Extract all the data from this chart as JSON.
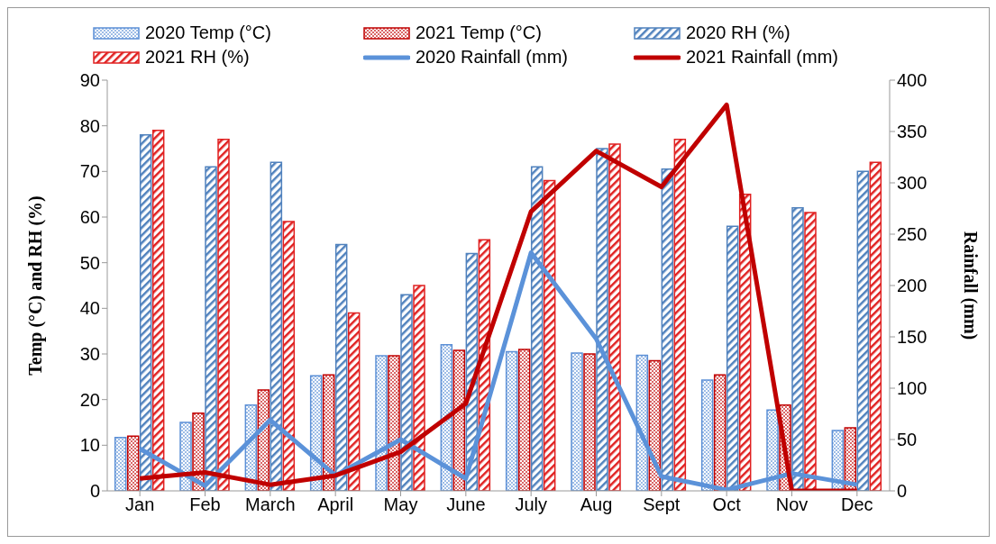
{
  "chart_data": {
    "type": "bar",
    "categories": [
      "Jan",
      "Feb",
      "March",
      "April",
      "May",
      "June",
      "July",
      "Aug",
      "Sept",
      "Oct",
      "Nov",
      "Dec"
    ],
    "ylabel": "Temp (°C) and RH (%)",
    "y2label": "Rainfall (mm)",
    "ylim": [
      0,
      90
    ],
    "yticks": [
      0,
      10,
      20,
      30,
      40,
      50,
      60,
      70,
      80,
      90
    ],
    "y2lim": [
      0,
      400
    ],
    "y2ticks": [
      0,
      50,
      100,
      150,
      200,
      250,
      300,
      350,
      400
    ],
    "legend": "top",
    "marker": "none",
    "series": [
      {
        "name": "2020 Temp (°C)",
        "color": "#5b8fd6",
        "values": [
          11.7,
          15,
          18.8,
          25.2,
          29.6,
          32,
          30.5,
          30.2,
          29.7,
          24.3,
          17.7,
          13.2
        ]
      },
      {
        "name": "2021 Temp (°C)",
        "color": "#c00000",
        "values": [
          12,
          17,
          22.1,
          25.4,
          29.6,
          30.8,
          31,
          30,
          28.5,
          25.4,
          18.8,
          13.8
        ]
      },
      {
        "name": "2020 RH (%)",
        "color": "#4f81bd",
        "values": [
          78,
          71,
          72,
          54,
          43,
          52,
          71,
          75,
          70.5,
          58,
          62,
          70
        ]
      },
      {
        "name": "2021 RH (%)",
        "color": "#e02020",
        "values": [
          79,
          77,
          59,
          39,
          45,
          55,
          68,
          76,
          77,
          65,
          61,
          72
        ]
      },
      {
        "name": "2020 Rainfall (mm)",
        "type": "line",
        "axis": "y2",
        "color": "#5b92d9",
        "values": [
          41,
          5,
          69,
          15,
          50,
          12,
          232,
          148,
          14,
          1,
          17,
          6
        ]
      },
      {
        "name": "2021 Rainfall (mm)",
        "type": "line",
        "axis": "y2",
        "color": "#c00000",
        "values": [
          12,
          18,
          6,
          15,
          38,
          85,
          272,
          331,
          296,
          376,
          0,
          0
        ]
      }
    ]
  }
}
